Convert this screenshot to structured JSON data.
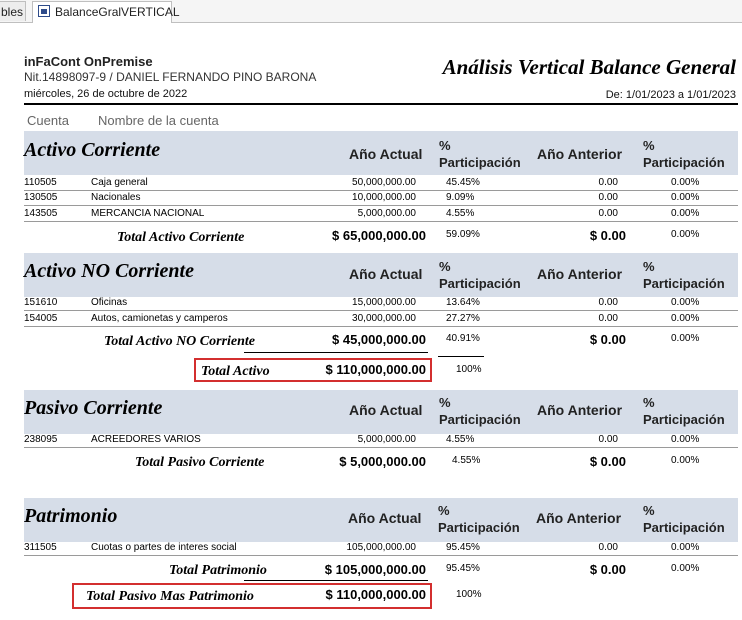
{
  "tabs": {
    "prev_label": "bles",
    "active_label": "BalanceGralVERTICAL"
  },
  "header": {
    "company": "inFaCont OnPremise",
    "nit": "Nit.14898097-9 / DANIEL FERNANDO PINO BARONA",
    "date": "miércoles, 26 de octubre de 2022",
    "title": "Análisis Vertical Balance General",
    "range": "De: 1/01/2023 a 1/01/2023"
  },
  "columns": {
    "cuenta": "Cuenta",
    "nombre": "Nombre de la cuenta",
    "ano_actual": "Año Actual",
    "pct_line1": "%",
    "pct_line2": "Participación",
    "ano_anterior": "Año Anterior"
  },
  "sections": [
    {
      "title": "Activo Corriente",
      "rows": [
        {
          "code": "110505",
          "name": "Caja general",
          "actual": "50,000,000.00",
          "pct": "45.45%",
          "anterior": "0.00",
          "pct2": "0.00%"
        },
        {
          "code": "130505",
          "name": "Nacionales",
          "actual": "10,000,000.00",
          "pct": "9.09%",
          "anterior": "0.00",
          "pct2": "0.00%"
        },
        {
          "code": "143505",
          "name": "MERCANCIA NACIONAL",
          "actual": "5,000,000.00",
          "pct": "4.55%",
          "anterior": "0.00",
          "pct2": "0.00%"
        }
      ],
      "total": {
        "label": "Total Activo Corriente",
        "actual": "$ 65,000,000.00",
        "pct": "59.09%",
        "anterior": "$ 0.00",
        "pct2": "0.00%"
      }
    },
    {
      "title": "Activo NO Corriente",
      "rows": [
        {
          "code": "151610",
          "name": "Oficinas",
          "actual": "15,000,000.00",
          "pct": "13.64%",
          "anterior": "0.00",
          "pct2": "0.00%"
        },
        {
          "code": "154005",
          "name": "Autos, camionetas y camperos",
          "actual": "30,000,000.00",
          "pct": "27.27%",
          "anterior": "0.00",
          "pct2": "0.00%"
        }
      ],
      "total": {
        "label": "Total Activo NO Corriente",
        "actual": "$ 45,000,000.00",
        "pct": "40.91%",
        "anterior": "$ 0.00",
        "pct2": "0.00%"
      }
    },
    {
      "title": "Pasivo Corriente",
      "rows": [
        {
          "code": "238095",
          "name": "ACREEDORES VARIOS",
          "actual": "5,000,000.00",
          "pct": "4.55%",
          "anterior": "0.00",
          "pct2": "0.00%"
        }
      ],
      "total": {
        "label": "Total Pasivo Corriente",
        "actual": "$ 5,000,000.00",
        "pct": "4.55%",
        "anterior": "$ 0.00",
        "pct2": "0.00%"
      }
    },
    {
      "title": "Patrimonio",
      "rows": [
        {
          "code": "311505",
          "name": "Cuotas o partes de interes social",
          "actual": "105,000,000.00",
          "pct": "95.45%",
          "anterior": "0.00",
          "pct2": "0.00%"
        }
      ],
      "total": {
        "label": "Total Patrimonio",
        "actual": "$ 105,000,000.00",
        "pct": "95.45%",
        "anterior": "$ 0.00",
        "pct2": "0.00%"
      }
    }
  ],
  "grand_totals": {
    "activo": {
      "label": "Total Activo",
      "value": "$ 110,000,000.00",
      "pct": "100%"
    },
    "pasivo_patrimonio": {
      "label": "Total Pasivo Mas Patrimonio",
      "value": "$ 110,000,000.00",
      "pct": "100%"
    }
  },
  "colors": {
    "band": "#d6dde8",
    "highlight": "#d32f2f",
    "tab_icon": "#2e4b8a"
  }
}
